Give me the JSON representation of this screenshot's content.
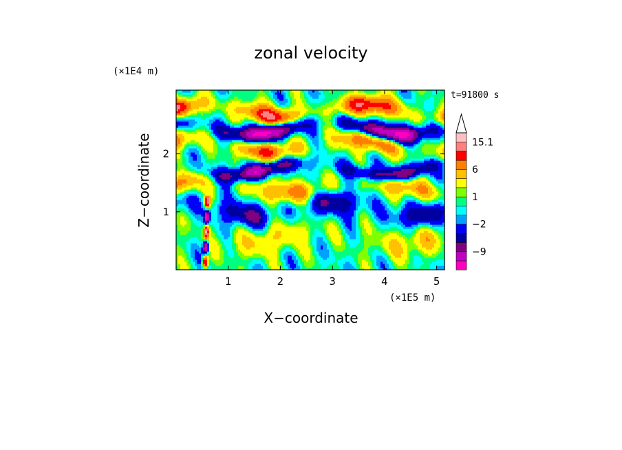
{
  "chart_data": {
    "type": "heatmap",
    "title": "zonal velocity",
    "xlabel": "X−coordinate",
    "ylabel": "Z−coordinate",
    "x_unit": "(×1E5 m)",
    "y_unit": "(×1E4 m)",
    "time_label": "t=91800 s",
    "xlim": [
      0,
      5.15
    ],
    "ylim": [
      0,
      3.1
    ],
    "x_ticks": [
      1,
      2,
      3,
      4,
      5
    ],
    "x_tick_labels": [
      "1",
      "2",
      "3",
      "4",
      "5"
    ],
    "y_ticks": [
      1,
      2
    ],
    "y_tick_labels": [
      "1",
      "2"
    ],
    "colorbar": {
      "levels": [
        -15,
        -12,
        -9,
        -6,
        -4,
        -2,
        -1,
        0,
        1,
        2,
        4,
        6,
        9,
        12,
        15.1
      ],
      "colors": [
        "#ff00c0",
        "#c000c0",
        "#800080",
        "#0000a0",
        "#0000ff",
        "#00a0ff",
        "#00ffff",
        "#00ff80",
        "#80ff00",
        "#ffff00",
        "#ffc000",
        "#ff8000",
        "#ff0000",
        "#ff8080",
        "#ffc0c0"
      ],
      "labeled_values": [
        "15.1",
        "6",
        "1",
        "−2",
        "−9"
      ],
      "extend_max": true
    },
    "bands": [
      {
        "z": 2.75,
        "amp": 12,
        "phase": 0.3,
        "wavelength": 1.9,
        "width": 0.16
      },
      {
        "z": 2.45,
        "amp": -13,
        "phase": 1.8,
        "wavelength": 2.4,
        "width": 0.14
      },
      {
        "z": 2.15,
        "amp": 9,
        "phase": 0.9,
        "wavelength": 2.0,
        "width": 0.16
      },
      {
        "z": 1.75,
        "amp": -10,
        "phase": 2.6,
        "wavelength": 2.6,
        "width": 0.13
      },
      {
        "z": 1.45,
        "amp": 7,
        "phase": 0.2,
        "wavelength": 2.2,
        "width": 0.18
      },
      {
        "z": 1.05,
        "amp": -6,
        "phase": 1.4,
        "wavelength": 1.7,
        "width": 0.2
      },
      {
        "z": 0.55,
        "amp": 4,
        "phase": 2.2,
        "wavelength": 2.8,
        "width": 0.25
      }
    ],
    "vertical_streak": {
      "x": 0.55,
      "amp": 14
    }
  }
}
